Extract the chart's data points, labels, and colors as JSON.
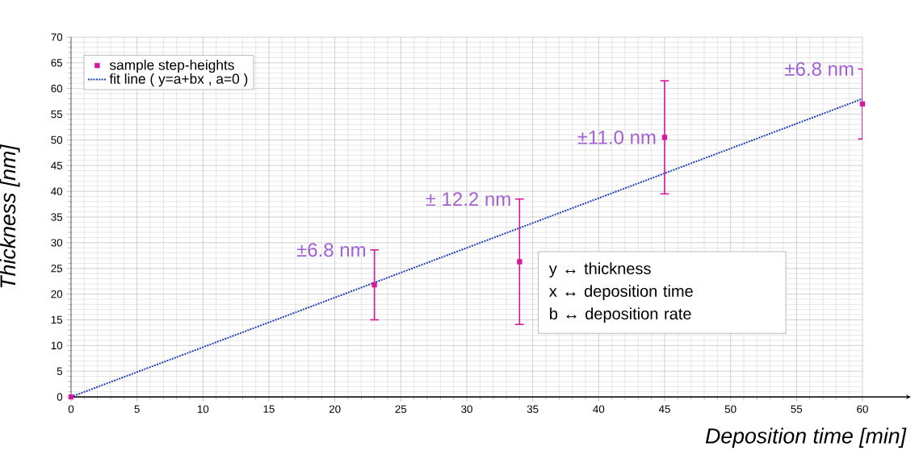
{
  "chart_data": {
    "type": "scatter",
    "xlabel": "Deposition time [min]",
    "ylabel": "Thickness [nm]",
    "xlim": [
      0,
      60
    ],
    "ylim": [
      0,
      70
    ],
    "xticks": [
      0,
      5,
      10,
      15,
      20,
      25,
      30,
      35,
      40,
      45,
      50,
      55,
      60
    ],
    "yticks": [
      0,
      5,
      10,
      15,
      20,
      25,
      30,
      35,
      40,
      45,
      50,
      55,
      60,
      65,
      70
    ],
    "grid": true,
    "legend": "top left",
    "series": [
      {
        "name": "sample step-heights",
        "color": "#d4189c",
        "marker": "square",
        "x": [
          0,
          23,
          34,
          45,
          60
        ],
        "values": [
          0,
          21.8,
          26.3,
          50.5,
          57
        ],
        "errors": [
          null,
          6.8,
          12.2,
          11.0,
          6.8
        ]
      },
      {
        "name": "fit line ( y=a+bx , a=0 )",
        "type": "line",
        "color": "#1f3fbf",
        "marker": "none",
        "line_style": "dotted",
        "x": [
          0,
          60
        ],
        "values": [
          0,
          58
        ]
      }
    ],
    "annotations": [
      {
        "text": "±6.8 nm",
        "x": 23,
        "y": 28.6
      },
      {
        "text": "± 12.2 nm",
        "x": 34,
        "y": 38.5
      },
      {
        "text": "±11.0 nm",
        "x": 45,
        "y": 50.5
      },
      {
        "text": "±6.8 nm",
        "x": 60,
        "y": 63.8
      },
      "y ↔ thickness",
      "x ↔ deposition time",
      "b ↔ deposition rate"
    ]
  }
}
